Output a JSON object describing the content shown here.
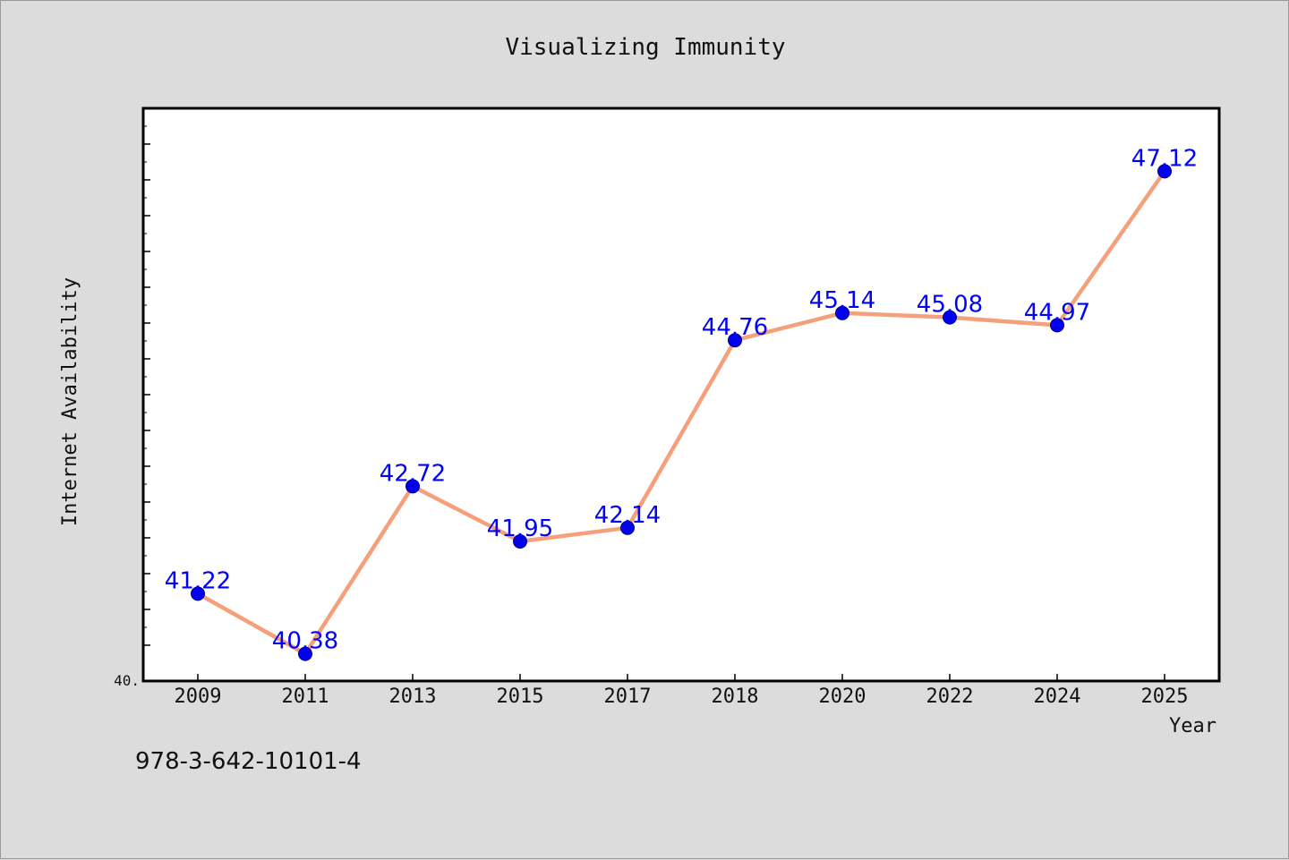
{
  "chart_data": {
    "type": "line",
    "title": "Visualizing Immunity",
    "xlabel": "Year",
    "ylabel": "Internet Availability",
    "categories": [
      "2009",
      "2011",
      "2013",
      "2015",
      "2017",
      "2018",
      "2020",
      "2022",
      "2024",
      "2025"
    ],
    "series": [
      {
        "values": [
          41.22,
          40.38,
          42.72,
          41.95,
          42.14,
          44.76,
          45.14,
          45.08,
          44.97,
          47.12
        ],
        "data_labels": [
          "41.22",
          "40.38",
          "42.72",
          "41.95",
          "42.14",
          "44.76",
          "45.14",
          "45.08",
          "44.97",
          "47.12"
        ]
      }
    ],
    "y_tick_labels": [
      "40."
    ],
    "ylim": [
      40.0,
      48.0
    ],
    "grid": false,
    "legend": "none",
    "line_color": "#f4a07a",
    "marker_color": "#0000ee",
    "label_color": "#0000ff",
    "plot_background": "#ffffff",
    "figure_background": "#dcdcdc"
  },
  "footer": {
    "code": "978-3-642-10101-4"
  }
}
